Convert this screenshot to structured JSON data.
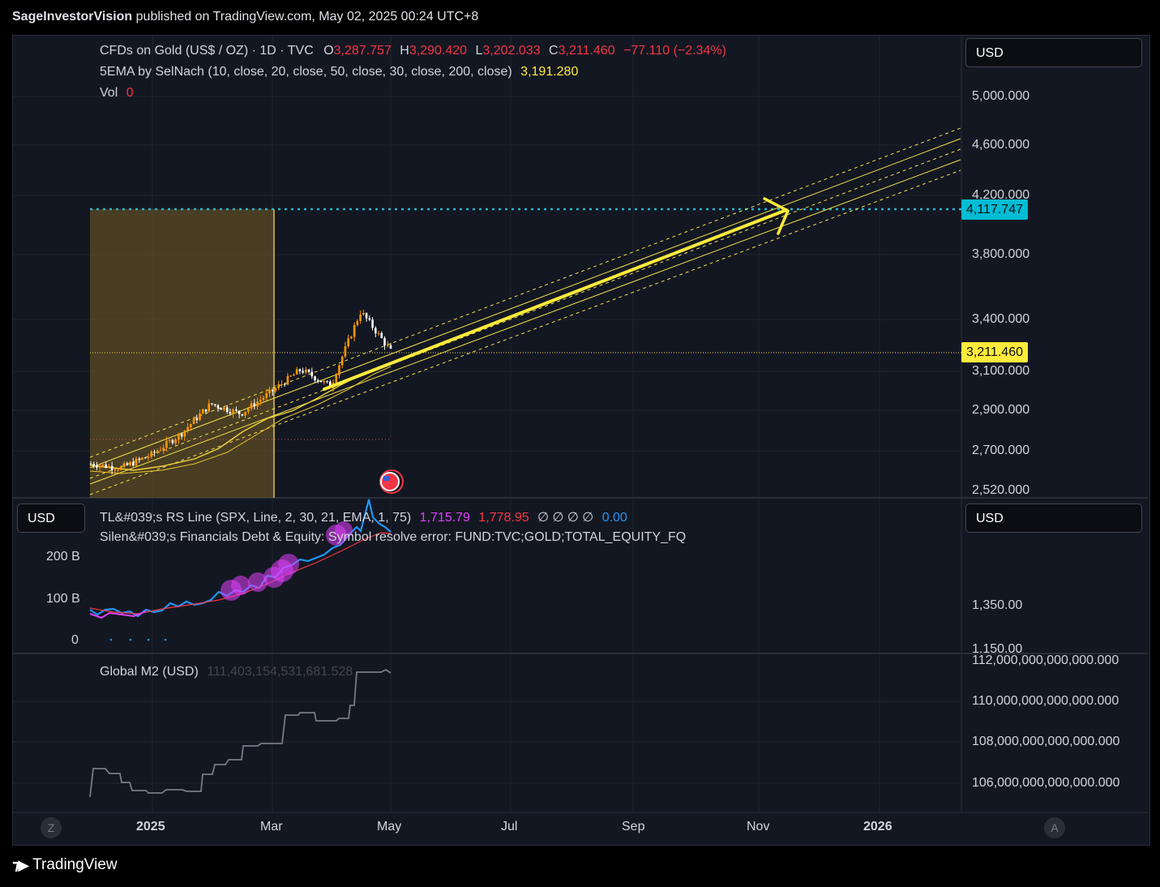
{
  "header": {
    "author": "SageInvestorVision",
    "published_text": "published on TradingView.com, May 02, 2025 00:24 UTC+8"
  },
  "footer": {
    "brand": "TradingView"
  },
  "main_pane": {
    "symbol": "CFDs on Gold (US$ / OZ) · 1D · TVC",
    "ohlc": {
      "o_label": "O",
      "o": "3,287.757",
      "h_label": "H",
      "h": "3,290.420",
      "l_label": "L",
      "l": "3,202.033",
      "c_label": "C",
      "c": "3,211.460",
      "change": "−77.110 (−2.34%)"
    },
    "ema_label": "5EMA by SelNach (10, close, 20, close, 50, close, 30, close, 200, close)",
    "ema_value": "3,191.280",
    "vol_label": "Vol",
    "vol_value": "0",
    "currency": "USD",
    "y_ticks": [
      "5,000.000",
      "4,600.000",
      "4,200.000",
      "3,800.000",
      "3,400.000",
      "3,100.000",
      "2,900.000",
      "2,700.000",
      "2,520.000"
    ],
    "target_label": "4,117.747",
    "last_price_label": "3,211.460"
  },
  "rs_pane": {
    "currency_left": "USD",
    "currency_right": "USD",
    "line1_label": "TL&#039;s RS Line (SPX, Line, 2, 30, 21, EMA, 1, 75)",
    "line1_v1": "1,715.79",
    "line1_v2": "1,778.95",
    "line1_empties": "∅  ∅  ∅  ∅",
    "line1_v3": "0.00",
    "line2_label": "Silen&#039;s Financials Debt & Equity: Symbol resolve error: FUND:TVC;GOLD;TOTAL_EQUITY_FQ",
    "left_ticks": [
      "200 B",
      "100 B",
      "0"
    ],
    "right_ticks": [
      "1,350.00",
      "1,150.00"
    ]
  },
  "m2_pane": {
    "label": "Global M2 (USD)",
    "value": "111,403,154,531,681.528",
    "y_ticks": [
      "112,000,000,000,000.000",
      "110,000,000,000,000.000",
      "108,000,000,000,000.000",
      "106,000,000,000,000.000"
    ]
  },
  "x_axis": {
    "ticks": [
      "2025",
      "Mar",
      "May",
      "Jul",
      "Sep",
      "Nov",
      "2026"
    ],
    "left_button": "Z",
    "right_button": "A"
  },
  "colors": {
    "up": "#ff9800",
    "down": "#ffffff",
    "channel": "#f5e24a",
    "target": "#00bcd4",
    "rs_blue": "#2196f3",
    "magenta": "#e040fb"
  },
  "chart_data": [
    {
      "type": "line",
      "title": "CFDs on Gold (US$ / OZ) · 1D · TVC",
      "scale": "log",
      "ylim": [
        2520,
        5000
      ],
      "x_ticks": [
        "2025",
        "Mar",
        "May",
        "Jul",
        "Sep",
        "Nov",
        "2026"
      ],
      "series": [
        {
          "name": "CFDs on Gold (US$ / OZ)",
          "x": [
            "2024-12",
            "2025-01",
            "2025-01",
            "2025-02",
            "2025-02",
            "2025-03",
            "2025-03",
            "2025-04",
            "2025-04",
            "2025-04",
            "2025-05"
          ],
          "values": [
            2640,
            2620,
            2680,
            2780,
            2930,
            2880,
            2990,
            3110,
            3020,
            3440,
            3211.46
          ]
        }
      ],
      "annotations": {
        "target": 4117.747,
        "last_close": 3211.46,
        "ema": 3191.28
      }
    },
    {
      "type": "line",
      "title": "TL's RS Line",
      "series": [
        {
          "name": "RS Line",
          "values": [
            1715.79
          ]
        },
        {
          "name": "EMA",
          "values": [
            1778.95
          ]
        }
      ]
    },
    {
      "type": "line",
      "title": "Global M2 (USD)",
      "ylim": [
        105000000000000,
        112000000000000
      ],
      "series": [
        {
          "name": "Global M2 (USD)",
          "values": [
            106700000000000,
            106500000000000,
            105900000000000,
            106100000000000,
            106900000000000,
            107500000000000,
            108100000000000,
            109600000000000,
            110800000000000,
            111403154531681.53
          ]
        }
      ]
    }
  ]
}
